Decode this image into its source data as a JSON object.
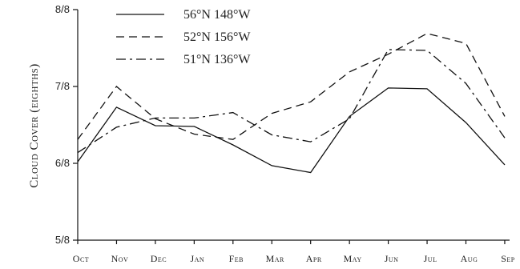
{
  "chart_data": {
    "type": "line",
    "ylabel": "Cloud Cover (eighths)",
    "xlabel": "",
    "title": "",
    "categories": [
      "Oct",
      "Nov",
      "Dec",
      "Jan",
      "Feb",
      "Mar",
      "Apr",
      "May",
      "Jun",
      "Jul",
      "Aug",
      "Sep"
    ],
    "y_ticks": [
      {
        "value": 5,
        "label": "5/8"
      },
      {
        "value": 6,
        "label": "6/8"
      },
      {
        "value": 7,
        "label": "7/8"
      },
      {
        "value": 8,
        "label": "8/8"
      }
    ],
    "ylim": [
      5,
      8
    ],
    "legend_position": "top-left",
    "grid": false,
    "series": [
      {
        "name": "56°N 148°W",
        "dash": "solid",
        "color": "#111111",
        "values": [
          6.02,
          6.73,
          6.49,
          6.48,
          6.24,
          5.97,
          5.88,
          6.61,
          6.98,
          6.97,
          6.53,
          5.98
        ]
      },
      {
        "name": "52°N 156°W",
        "dash": "dashed",
        "color": "#111111",
        "values": [
          6.31,
          7.0,
          6.58,
          6.38,
          6.31,
          6.65,
          6.8,
          7.19,
          7.42,
          7.69,
          7.56,
          6.61
        ]
      },
      {
        "name": "51°N 136°W",
        "dash": "dashdot",
        "color": "#111111",
        "values": [
          6.14,
          6.47,
          6.59,
          6.59,
          6.66,
          6.37,
          6.28,
          6.58,
          7.48,
          7.47,
          7.04,
          6.33
        ]
      }
    ]
  }
}
